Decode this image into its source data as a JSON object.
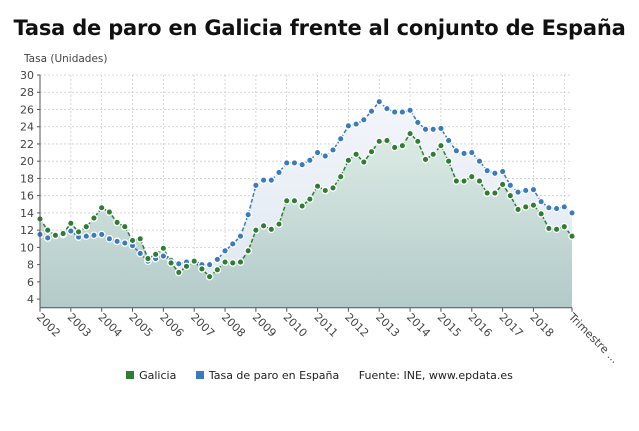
{
  "title": "Tasa de paro en Galicia frente al conjunto de España",
  "y_axis_label": "Tasa (Unidades)",
  "legend": {
    "galicia": "Galicia",
    "spain": "Tasa de paro en España",
    "source": "Fuente: INE, www.epdata.es"
  },
  "colors": {
    "galicia": "#2e7d32",
    "spain": "#3a7bbf",
    "fill_bottom": "#b3cbcb",
    "fill_top": "#e8eef5",
    "grid": "#cccccc",
    "axis": "#555555"
  },
  "chart_data": {
    "type": "area",
    "title": "Tasa de paro en Galicia frente al conjunto de España",
    "xlabel": "Trimestre",
    "ylabel": "Tasa (Unidades)",
    "ylim": [
      3,
      30
    ],
    "yticks": [
      4,
      6,
      8,
      10,
      12,
      14,
      16,
      18,
      20,
      22,
      24,
      26,
      28,
      30
    ],
    "xticks": [
      "2002",
      "2003",
      "2004",
      "2005",
      "2006",
      "2007",
      "2008",
      "2009",
      "2010",
      "2011",
      "2012",
      "2013",
      "2014",
      "2015",
      "2016",
      "2017",
      "2018",
      "Trimestre ..."
    ],
    "grid": true,
    "legend_position": "bottom",
    "x_start": "2002Q1",
    "x_freq": "quarterly",
    "series": [
      {
        "name": "Galicia",
        "color": "#2e7d32",
        "values": [
          13.3,
          12.0,
          11.4,
          11.6,
          12.8,
          11.8,
          12.4,
          13.4,
          14.6,
          14.1,
          12.9,
          12.4,
          10.8,
          11.0,
          8.7,
          9.2,
          9.9,
          8.2,
          7.1,
          7.8,
          8.4,
          7.5,
          6.6,
          7.4,
          8.3,
          8.2,
          8.3,
          9.6,
          12.0,
          12.5,
          12.1,
          12.7,
          15.4,
          15.4,
          14.8,
          15.6,
          17.1,
          16.6,
          16.9,
          18.2,
          20.1,
          20.8,
          19.9,
          21.1,
          22.3,
          22.4,
          21.6,
          21.8,
          23.2,
          22.3,
          20.2,
          20.8,
          21.8,
          20.0,
          17.7,
          17.7,
          18.2,
          17.7,
          16.3,
          16.3,
          17.3,
          16.0,
          14.4,
          14.7,
          14.9,
          13.9,
          12.2,
          12.1,
          12.4,
          11.3
        ]
      },
      {
        "name": "Tasa de paro en España",
        "color": "#3a7bbf",
        "values": [
          11.5,
          11.1,
          11.4,
          11.5,
          11.9,
          11.2,
          11.3,
          11.4,
          11.5,
          11.0,
          10.7,
          10.5,
          10.2,
          9.3,
          8.4,
          8.7,
          9.0,
          8.5,
          8.1,
          8.3,
          8.5,
          8.0,
          8.0,
          8.6,
          9.6,
          10.4,
          11.3,
          13.8,
          17.2,
          17.8,
          17.8,
          18.7,
          19.8,
          19.8,
          19.6,
          20.1,
          21.0,
          20.6,
          21.3,
          22.6,
          24.1,
          24.3,
          24.8,
          25.8,
          26.9,
          26.1,
          25.7,
          25.7,
          25.9,
          24.5,
          23.7,
          23.7,
          23.8,
          22.4,
          21.2,
          20.9,
          21.0,
          20.0,
          18.9,
          18.6,
          18.8,
          17.2,
          16.4,
          16.6,
          16.7,
          15.3,
          14.6,
          14.5,
          14.7,
          14.0
        ]
      }
    ]
  }
}
